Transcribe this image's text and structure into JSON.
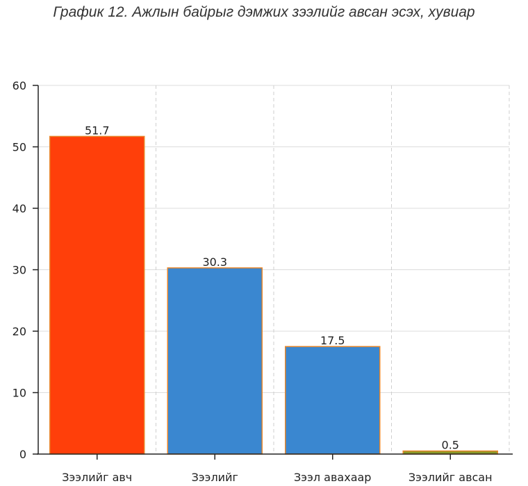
{
  "chart_data": {
    "type": "bar",
    "title": "График 12. Ажлын байрыг дэмжих зээлийг авсан эсэх, хувиар",
    "categories": [
      "Зээлийг авч",
      "Зээлийг",
      "Зээл авахаар",
      "Зээлийг авсан"
    ],
    "values": [
      51.7,
      30.3,
      17.5,
      0.5
    ],
    "value_labels": [
      "51.7",
      "30.3",
      "17.5",
      "0.5"
    ],
    "colors": [
      "#ff3f0a",
      "#3a87d0",
      "#3a87d0",
      "#8a9a2a"
    ],
    "border_color": "#e8862a",
    "xlabel": "",
    "ylabel": "",
    "ylim": [
      0,
      60
    ],
    "yticks": [
      0,
      10,
      20,
      30,
      40,
      50,
      60
    ],
    "grid": true,
    "legend": "none"
  }
}
